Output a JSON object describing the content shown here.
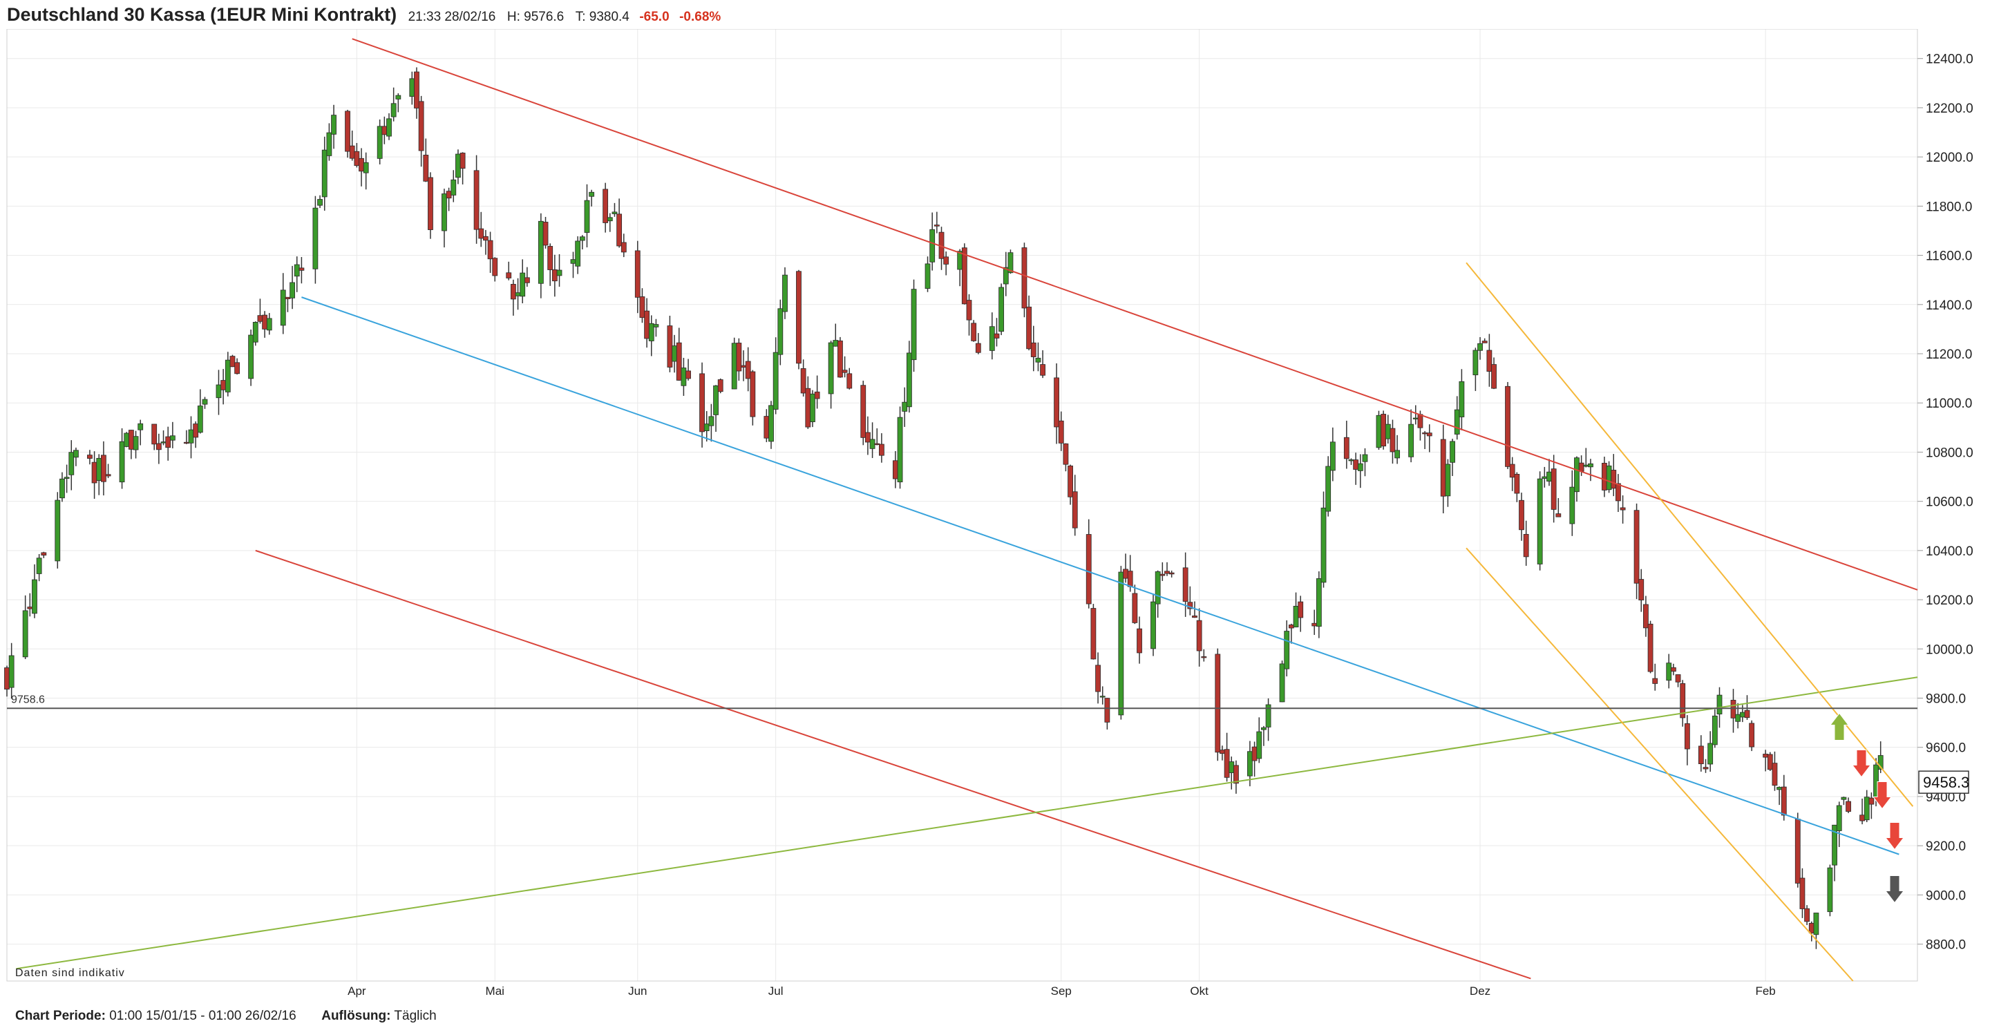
{
  "header": {
    "title": "Deutschland 30 Kassa (1EUR Mini Kontrakt)",
    "datetime": "21:33 28/02/16",
    "high": "H: 9576.6",
    "low": "T: 9380.4",
    "change": "-65.0",
    "change_pct": "-0.68%"
  },
  "footer": {
    "period_label": "Chart Periode:",
    "period_value": "01:00 15/01/15 - 01:00 26/02/16",
    "resolution_label": "Auflösung:",
    "resolution_value": "Täglich"
  },
  "disclaimer": "Daten sind indikativ",
  "chart_data": {
    "type": "candlestick",
    "title": "Deutschland 30 Kassa (1EUR Mini Kontrakt)",
    "resolution": "daily",
    "x_range": [
      "2015-01-15",
      "2016-02-26"
    ],
    "ylim": [
      8650,
      12520
    ],
    "y_axis_position": "right",
    "y_ticks": [
      "12400.0",
      "12200.0",
      "12000.0",
      "11800.0",
      "11600.0",
      "11400.0",
      "11200.0",
      "11000.0",
      "10800.0",
      "10600.0",
      "10400.0",
      "10200.0",
      "10000.0",
      "9800.0",
      "9600.0",
      "9400.0",
      "9200.0",
      "9000.0",
      "8800.0"
    ],
    "x_ticks": [
      {
        "label": "Apr",
        "date": "2015-04-01"
      },
      {
        "label": "Mai",
        "date": "2015-05-01"
      },
      {
        "label": "Jun",
        "date": "2015-06-01"
      },
      {
        "label": "Jul",
        "date": "2015-07-01"
      },
      {
        "label": "Sep",
        "date": "2015-09-01"
      },
      {
        "label": "Okt",
        "date": "2015-10-01"
      },
      {
        "label": "Dez",
        "date": "2015-12-01"
      },
      {
        "label": "Feb",
        "date": "2016-02-01"
      }
    ],
    "grid": true,
    "reference_line": {
      "value": 9758.6,
      "label": "9758.6",
      "color": "#555555"
    },
    "current_price": {
      "value": 9458.3,
      "label": "9458.3"
    },
    "colors": {
      "up": "#3b9a2b",
      "down": "#b5362f",
      "red_channel": "#d9443a",
      "blue_line": "#39a3dc",
      "green_line": "#8db83f",
      "orange_channel": "#f5b83a"
    },
    "trendlines": [
      {
        "name": "red-channel-upper",
        "color": "#d9443a",
        "from": {
          "date": "2015-03-31",
          "value": 12480
        },
        "to": {
          "date": "2016-03-05",
          "value": 10240
        }
      },
      {
        "name": "red-channel-lower",
        "color": "#d9443a",
        "from": {
          "date": "2015-03-10",
          "value": 10400
        },
        "to": {
          "date": "2015-12-12",
          "value": 8660
        }
      },
      {
        "name": "blue-line",
        "color": "#39a3dc",
        "from": {
          "date": "2015-03-20",
          "value": 11430
        },
        "to": {
          "date": "2016-03-01",
          "value": 9165
        }
      },
      {
        "name": "green-line",
        "color": "#8db83f",
        "from": {
          "date": "2015-01-17",
          "value": 8700
        },
        "to": {
          "date": "2016-03-05",
          "value": 9885
        }
      },
      {
        "name": "orange-channel-upper",
        "color": "#f5b83a",
        "from": {
          "date": "2015-11-28",
          "value": 11570
        },
        "to": {
          "date": "2016-03-04",
          "value": 9360
        }
      },
      {
        "name": "orange-channel-lower",
        "color": "#f5b83a",
        "from": {
          "date": "2015-11-28",
          "value": 10410
        },
        "to": {
          "date": "2016-02-20",
          "value": 8650
        }
      }
    ],
    "signal_arrows": [
      {
        "direction": "up",
        "color": "#8cb63c"
      },
      {
        "direction": "down",
        "color": "#e8463a"
      },
      {
        "direction": "down",
        "color": "#e8463a"
      },
      {
        "direction": "down",
        "color": "#e8463a"
      },
      {
        "direction": "down",
        "color": "#555555"
      }
    ],
    "anchors": [
      [
        "2015-01-15",
        9900
      ],
      [
        "2015-01-22",
        10300
      ],
      [
        "2015-01-29",
        10800
      ],
      [
        "2015-02-05",
        10700
      ],
      [
        "2015-02-12",
        10900
      ],
      [
        "2015-02-19",
        10780
      ],
      [
        "2015-02-26",
        10950
      ],
      [
        "2015-03-05",
        11150
      ],
      [
        "2015-03-12",
        11330
      ],
      [
        "2015-03-19",
        11500
      ],
      [
        "2015-03-24",
        11800
      ],
      [
        "2015-03-26",
        12150
      ],
      [
        "2015-04-01",
        11900
      ],
      [
        "2015-04-08",
        12180
      ],
      [
        "2015-04-13",
        12350
      ],
      [
        "2015-04-17",
        11700
      ],
      [
        "2015-04-24",
        12000
      ],
      [
        "2015-04-30",
        11550
      ],
      [
        "2015-05-06",
        11400
      ],
      [
        "2015-05-11",
        11700
      ],
      [
        "2015-05-15",
        11500
      ],
      [
        "2015-05-22",
        11800
      ],
      [
        "2015-05-28",
        11700
      ],
      [
        "2015-06-03",
        11300
      ],
      [
        "2015-06-10",
        11150
      ],
      [
        "2015-06-16",
        10900
      ],
      [
        "2015-06-22",
        11200
      ],
      [
        "2015-06-29",
        10850
      ],
      [
        "2015-07-03",
        11550
      ],
      [
        "2015-07-08",
        10900
      ],
      [
        "2015-07-13",
        11250
      ],
      [
        "2015-07-17",
        11000
      ],
      [
        "2015-07-22",
        10850
      ],
      [
        "2015-07-27",
        10700
      ],
      [
        "2015-07-31",
        11400
      ],
      [
        "2015-08-04",
        11700
      ],
      [
        "2015-08-10",
        11550
      ],
      [
        "2015-08-14",
        11150
      ],
      [
        "2015-08-18",
        11300
      ],
      [
        "2015-08-21",
        11600
      ],
      [
        "2015-08-26",
        11200
      ],
      [
        "2015-08-31",
        10950
      ],
      [
        "2015-09-04",
        10500
      ],
      [
        "2015-09-08",
        10000
      ],
      [
        "2015-09-11",
        9650
      ],
      [
        "2015-09-14",
        10350
      ],
      [
        "2015-09-18",
        10050
      ],
      [
        "2015-09-23",
        10300
      ],
      [
        "2015-09-29",
        10200
      ],
      [
        "2015-10-02",
        9950
      ],
      [
        "2015-10-06",
        9550
      ],
      [
        "2015-10-09",
        9450
      ],
      [
        "2015-10-14",
        9600
      ],
      [
        "2015-10-19",
        10000
      ],
      [
        "2015-10-22",
        10150
      ],
      [
        "2015-10-26",
        10050
      ],
      [
        "2015-10-29",
        10800
      ],
      [
        "2015-11-04",
        10750
      ],
      [
        "2015-11-09",
        10900
      ],
      [
        "2015-11-13",
        10800
      ],
      [
        "2015-11-18",
        10950
      ],
      [
        "2015-11-23",
        10600
      ],
      [
        "2015-11-26",
        11000
      ],
      [
        "2015-12-01",
        11300
      ],
      [
        "2015-12-04",
        11000
      ],
      [
        "2015-12-08",
        10700
      ],
      [
        "2015-12-11",
        10400
      ],
      [
        "2015-12-15",
        10700
      ],
      [
        "2015-12-18",
        10600
      ],
      [
        "2015-12-22",
        10750
      ],
      [
        "2015-12-29",
        10700
      ],
      [
        "2015-12-31",
        10600
      ],
      [
        "2016-01-05",
        10250
      ],
      [
        "2016-01-08",
        9800
      ],
      [
        "2016-01-12",
        9900
      ],
      [
        "2016-01-15",
        9600
      ],
      [
        "2016-01-19",
        9500
      ],
      [
        "2016-01-22",
        9800
      ],
      [
        "2016-01-27",
        9700
      ],
      [
        "2016-02-01",
        9600
      ],
      [
        "2016-02-05",
        9300
      ],
      [
        "2016-02-08",
        9000
      ],
      [
        "2016-02-11",
        8850
      ],
      [
        "2016-02-15",
        9150
      ],
      [
        "2016-02-18",
        9400
      ],
      [
        "2016-02-22",
        9350
      ],
      [
        "2016-02-26",
        9500
      ]
    ]
  }
}
